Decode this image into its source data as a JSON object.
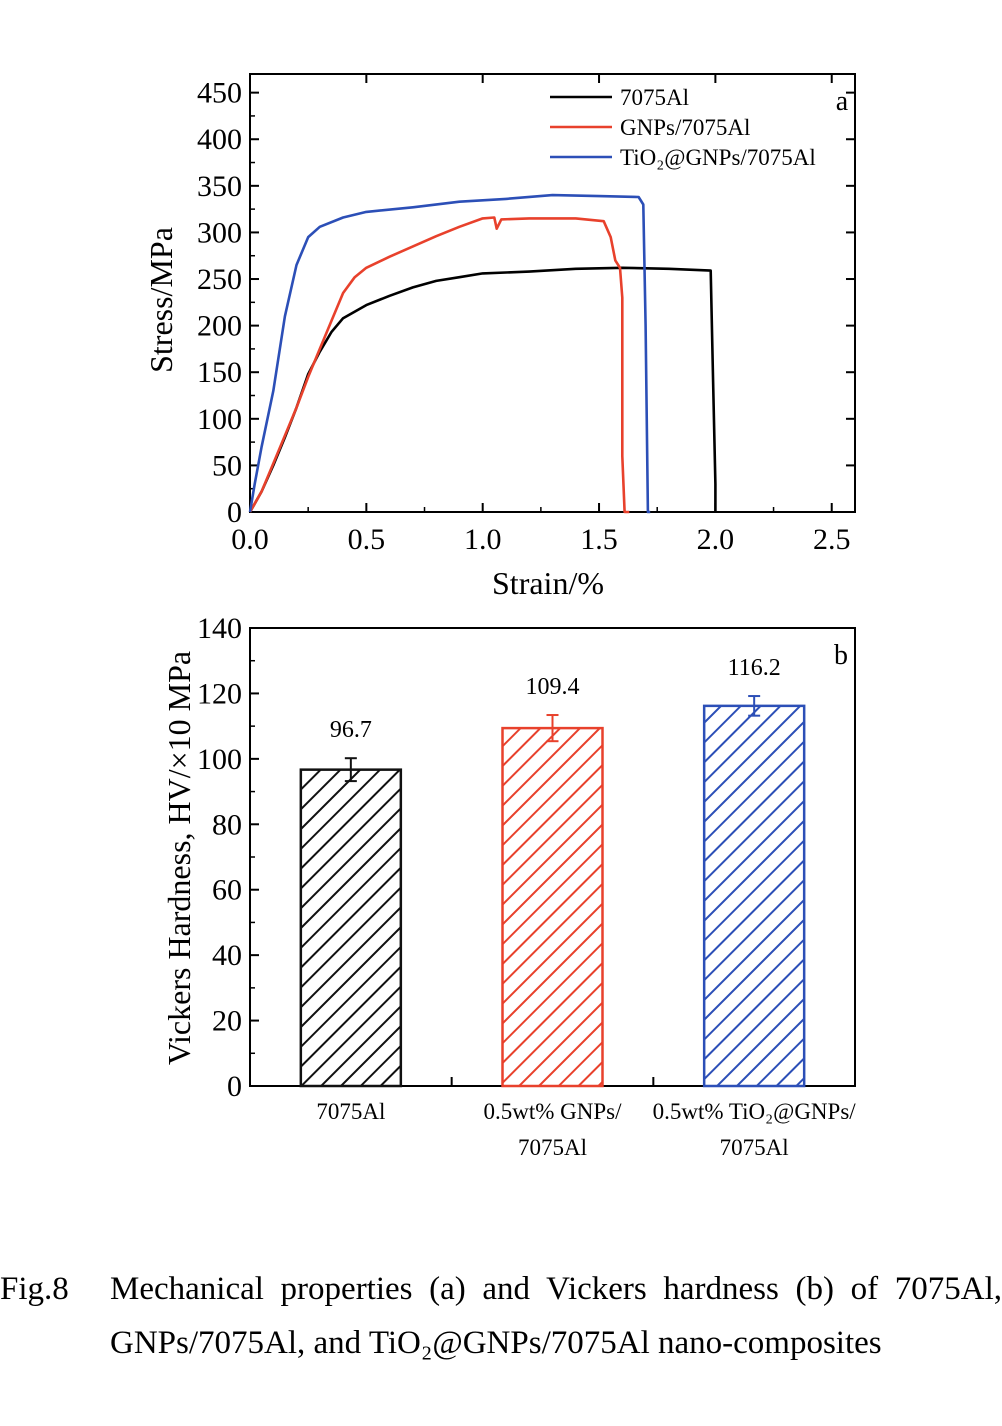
{
  "chart_data": [
    {
      "type": "line",
      "panel_label": "a",
      "xlabel": "Strain/%",
      "ylabel": "Stress/MPa",
      "xlim": [
        0,
        2.6
      ],
      "ylim": [
        0,
        470
      ],
      "xticks": [
        "0.0",
        "0.5",
        "1.0",
        "1.5",
        "2.0",
        "2.5"
      ],
      "yticks": [
        "0",
        "50",
        "100",
        "150",
        "200",
        "250",
        "300",
        "350",
        "400",
        "450"
      ],
      "legend_position": "top-right",
      "series": [
        {
          "name": "7075Al",
          "color": "#000000",
          "points": [
            [
              0,
              0
            ],
            [
              0.05,
              22
            ],
            [
              0.1,
              50
            ],
            [
              0.15,
              80
            ],
            [
              0.2,
              112
            ],
            [
              0.25,
              148
            ],
            [
              0.3,
              172
            ],
            [
              0.35,
              193
            ],
            [
              0.4,
              208
            ],
            [
              0.5,
              222
            ],
            [
              0.6,
              232
            ],
            [
              0.7,
              241
            ],
            [
              0.8,
              248
            ],
            [
              0.9,
              252
            ],
            [
              1.0,
              256
            ],
            [
              1.2,
              258
            ],
            [
              1.4,
              261
            ],
            [
              1.6,
              262
            ],
            [
              1.8,
              261
            ],
            [
              1.98,
              259
            ],
            [
              1.99,
              140
            ],
            [
              2.0,
              30
            ],
            [
              2.0,
              0
            ]
          ]
        },
        {
          "name": "GNPs/7075Al",
          "color": "#e8412c",
          "points": [
            [
              0,
              0
            ],
            [
              0.05,
              22
            ],
            [
              0.1,
              52
            ],
            [
              0.15,
              82
            ],
            [
              0.2,
              112
            ],
            [
              0.25,
              145
            ],
            [
              0.3,
              175
            ],
            [
              0.35,
              205
            ],
            [
              0.4,
              235
            ],
            [
              0.45,
              252
            ],
            [
              0.5,
              262
            ],
            [
              0.6,
              274
            ],
            [
              0.7,
              285
            ],
            [
              0.8,
              296
            ],
            [
              0.9,
              306
            ],
            [
              1.0,
              315
            ],
            [
              1.05,
              316
            ],
            [
              1.06,
              304
            ],
            [
              1.08,
              314
            ],
            [
              1.2,
              315
            ],
            [
              1.4,
              315
            ],
            [
              1.52,
              312
            ],
            [
              1.55,
              295
            ],
            [
              1.57,
              270
            ],
            [
              1.59,
              262
            ],
            [
              1.6,
              230
            ],
            [
              1.6,
              60
            ],
            [
              1.61,
              0
            ],
            [
              1.63,
              0
            ]
          ]
        },
        {
          "name": "TiO₂@GNPs/7075Al",
          "color": "#2c4fb7",
          "points": [
            [
              0,
              0
            ],
            [
              0.02,
              30
            ],
            [
              0.05,
              70
            ],
            [
              0.1,
              130
            ],
            [
              0.15,
              210
            ],
            [
              0.2,
              265
            ],
            [
              0.25,
              295
            ],
            [
              0.3,
              306
            ],
            [
              0.4,
              316
            ],
            [
              0.5,
              322
            ],
            [
              0.7,
              327
            ],
            [
              0.9,
              333
            ],
            [
              1.1,
              336
            ],
            [
              1.3,
              340
            ],
            [
              1.5,
              339
            ],
            [
              1.67,
              338
            ],
            [
              1.69,
              330
            ],
            [
              1.7,
              200
            ],
            [
              1.71,
              0
            ],
            [
              1.72,
              0
            ]
          ]
        }
      ]
    },
    {
      "type": "bar",
      "panel_label": "b",
      "xlabel": "",
      "ylabel": "Vickers Hardness, HV/×10 MPa",
      "ylim": [
        0,
        140
      ],
      "yticks": [
        "0",
        "20",
        "40",
        "60",
        "80",
        "100",
        "120",
        "140"
      ],
      "categories": [
        {
          "line1": "7075Al",
          "line2": ""
        },
        {
          "line1": "0.5wt% GNPs/",
          "line2": "7075Al"
        },
        {
          "line1": "0.5wt% TiO₂@GNPs/",
          "line2": "7075Al"
        }
      ],
      "values": [
        96.7,
        109.4,
        116.2
      ],
      "errors": [
        3.5,
        4.0,
        3.0
      ],
      "value_labels": [
        "96.7",
        "109.4",
        "116.2"
      ],
      "colors": [
        "#111111",
        "#e8412c",
        "#2c4fb7"
      ],
      "fill": "diagonal hatch"
    }
  ],
  "caption": {
    "label": "Fig.8",
    "text": "Mechanical properties (a) and Vickers hardness (b) of 7075Al, GNPs/7075Al, and TiO₂@GNPs/7075Al nano-composites"
  }
}
